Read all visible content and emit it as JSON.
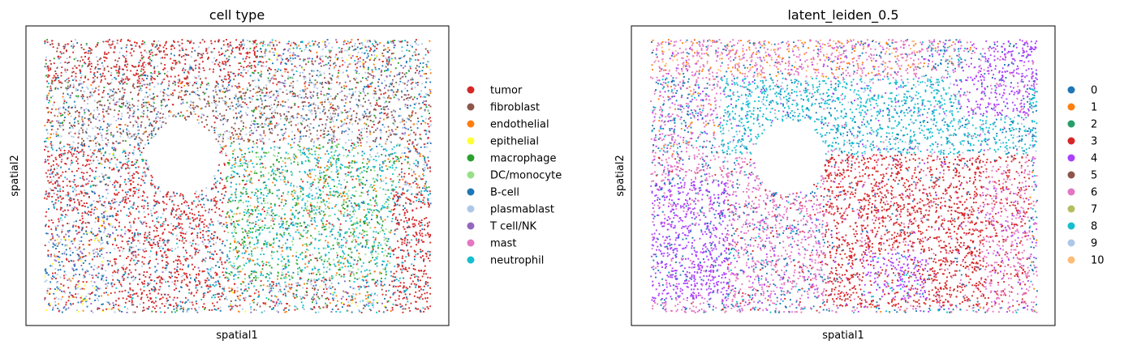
{
  "chart_data": [
    {
      "type": "scatter",
      "title": "cell type",
      "xlabel": "spatial1",
      "ylabel": "spatial2",
      "grid": false,
      "legend_position": "right",
      "ticks": "none",
      "series": [
        {
          "name": "tumor",
          "color": "#d62728"
        },
        {
          "name": "fibroblast",
          "color": "#8c564b"
        },
        {
          "name": "endothelial",
          "color": "#ff7f0e"
        },
        {
          "name": "epithelial",
          "color": "#ffff33"
        },
        {
          "name": "macrophage",
          "color": "#2ca02c"
        },
        {
          "name": "DC/monocyte",
          "color": "#98df8a"
        },
        {
          "name": "B-cell",
          "color": "#1f77b4"
        },
        {
          "name": "plasmablast",
          "color": "#aec7e8"
        },
        {
          "name": "T cell/NK",
          "color": "#9467bd"
        },
        {
          "name": "mast",
          "color": "#e377c2"
        },
        {
          "name": "neutrophil",
          "color": "#17becf"
        }
      ]
    },
    {
      "type": "scatter",
      "title": "latent_leiden_0.5",
      "xlabel": "spatial1",
      "ylabel": "spatial2",
      "grid": false,
      "legend_position": "right",
      "ticks": "none",
      "series": [
        {
          "name": "0",
          "color": "#1f77b4"
        },
        {
          "name": "1",
          "color": "#ff7f0e"
        },
        {
          "name": "2",
          "color": "#279e68"
        },
        {
          "name": "3",
          "color": "#d62728"
        },
        {
          "name": "4",
          "color": "#aa40fc"
        },
        {
          "name": "5",
          "color": "#8c564b"
        },
        {
          "name": "6",
          "color": "#e377c2"
        },
        {
          "name": "7",
          "color": "#b5bd61"
        },
        {
          "name": "8",
          "color": "#17becf"
        },
        {
          "name": "9",
          "color": "#aec7e8"
        },
        {
          "name": "10",
          "color": "#ffbb78"
        }
      ]
    }
  ]
}
